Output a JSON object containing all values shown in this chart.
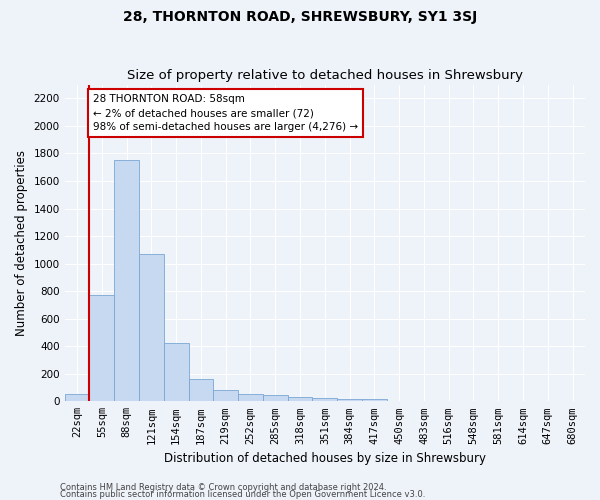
{
  "title": "28, THORNTON ROAD, SHREWSBURY, SY1 3SJ",
  "subtitle": "Size of property relative to detached houses in Shrewsbury",
  "xlabel": "Distribution of detached houses by size in Shrewsbury",
  "ylabel": "Number of detached properties",
  "bin_labels": [
    "22sqm",
    "55sqm",
    "88sqm",
    "121sqm",
    "154sqm",
    "187sqm",
    "219sqm",
    "252sqm",
    "285sqm",
    "318sqm",
    "351sqm",
    "384sqm",
    "417sqm",
    "450sqm",
    "483sqm",
    "516sqm",
    "548sqm",
    "581sqm",
    "614sqm",
    "647sqm",
    "680sqm"
  ],
  "bar_values": [
    55,
    770,
    1750,
    1070,
    420,
    160,
    85,
    50,
    45,
    30,
    25,
    15,
    20,
    0,
    0,
    0,
    0,
    0,
    0,
    0,
    0
  ],
  "bar_color": "#c6d9f0",
  "bar_edge_color": "#7aa6d4",
  "vline_color": "#cc0000",
  "annotation_text": "28 THORNTON ROAD: 58sqm\n← 2% of detached houses are smaller (72)\n98% of semi-detached houses are larger (4,276) →",
  "annotation_box_color": "#cc0000",
  "ylim": [
    0,
    2300
  ],
  "yticks": [
    0,
    200,
    400,
    600,
    800,
    1000,
    1200,
    1400,
    1600,
    1800,
    2000,
    2200
  ],
  "footer_line1": "Contains HM Land Registry data © Crown copyright and database right 2024.",
  "footer_line2": "Contains public sector information licensed under the Open Government Licence v3.0.",
  "bg_color": "#eef2f9",
  "grid_color": "#ffffff",
  "title_fontsize": 10,
  "subtitle_fontsize": 9.5,
  "axis_label_fontsize": 8.5,
  "tick_fontsize": 7.5,
  "footer_fontsize": 6.0
}
